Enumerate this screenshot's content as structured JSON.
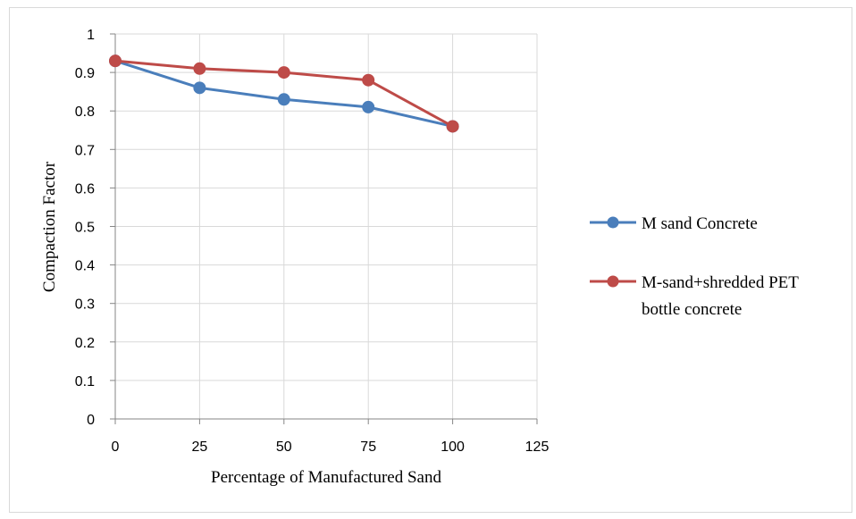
{
  "chart_data": {
    "type": "line",
    "xlabel": "Percentage of Manufactured Sand",
    "ylabel": "Compaction Factor",
    "xlim": [
      0,
      125
    ],
    "ylim": [
      0,
      1
    ],
    "x_ticks": [
      0,
      25,
      50,
      75,
      100,
      125
    ],
    "y_ticks": [
      0,
      0.1,
      0.2,
      0.3,
      0.4,
      0.5,
      0.6,
      0.7,
      0.8,
      0.9,
      1
    ],
    "grid": true,
    "legend_position": "right",
    "series": [
      {
        "name": "M sand Concrete",
        "color": "#4a7ebb",
        "x": [
          0,
          25,
          50,
          75,
          100
        ],
        "y": [
          0.93,
          0.86,
          0.83,
          0.81,
          0.76
        ]
      },
      {
        "name": "M-sand+shredded PET bottle concrete",
        "legend_lines": [
          "M-sand+shredded PET",
          "bottle concrete"
        ],
        "color": "#be4b48",
        "x": [
          0,
          25,
          50,
          75,
          100
        ],
        "y": [
          0.93,
          0.91,
          0.9,
          0.88,
          0.76
        ]
      }
    ]
  }
}
